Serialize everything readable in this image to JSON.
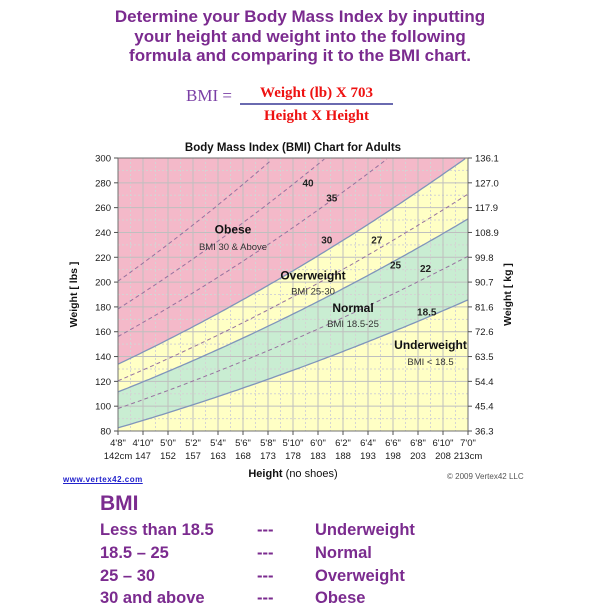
{
  "page": {
    "colors": {
      "heading_purple": "#7B2B8F",
      "formula_purple": "#7A3FA5",
      "formula_red": "#EE1111",
      "fraction_line": "#6A6AB0",
      "link_blue": "#2222CC"
    }
  },
  "header": {
    "lines": [
      "Determine your Body Mass Index by inputting",
      "your height and weight into the following",
      "formula and comparing it to the BMI chart."
    ]
  },
  "formula": {
    "lhs": "BMI =",
    "numerator": "Weight (lb) X 703",
    "denominator": "Height X Height"
  },
  "chart_data": {
    "type": "area",
    "title": "Body Mass Index (BMI) Chart for Adults",
    "bmi_formula": "weight_lb = BMI * height_in^2 / 703",
    "x_axis": {
      "label_bold": "Height",
      "label_rest": " (no shoes)",
      "range_in": [
        56,
        84
      ],
      "ticks_in": [
        56,
        58,
        60,
        62,
        64,
        66,
        68,
        70,
        72,
        74,
        76,
        78,
        80,
        82,
        84
      ],
      "ticks_ft": [
        "4'8\"",
        "4'10\"",
        "5'0\"",
        "5'2\"",
        "5'4\"",
        "5'6\"",
        "5'8\"",
        "5'10\"",
        "6'0\"",
        "6'2\"",
        "6'4\"",
        "6'6\"",
        "6'8\"",
        "6'10\"",
        "7'0\""
      ],
      "ticks_cm": [
        "142cm",
        "147",
        "152",
        "157",
        "163",
        "168",
        "173",
        "178",
        "183",
        "188",
        "193",
        "198",
        "203",
        "208",
        "213cm"
      ]
    },
    "y_left": {
      "label": "Weight [ lbs ]",
      "range_lbs": [
        80,
        300
      ],
      "ticks": [
        300,
        280,
        260,
        240,
        220,
        200,
        180,
        160,
        140,
        120,
        100,
        80
      ]
    },
    "y_right": {
      "label": "Weight [ kg ]",
      "ticks": [
        "136.1",
        "127.0",
        "117.9",
        "108.9",
        "99.8",
        "90.7",
        "81.6",
        "72.6",
        "63.5",
        "54.4",
        "45.4",
        "36.3"
      ]
    },
    "zones": [
      {
        "name": "Obese",
        "subtitle": "BMI 30 & Above",
        "bmi_range": [
          30,
          null
        ],
        "color": "#F4B9C9",
        "label": {
          "h_in": 65.2,
          "w_lbs": 239,
          "sub_w_lbs": 226
        }
      },
      {
        "name": "Overweight",
        "subtitle": "BMI 25-30",
        "bmi_range": [
          25,
          30
        ],
        "color": "#FFFFC5",
        "label": {
          "h_in": 71.6,
          "w_lbs": 202,
          "sub_w_lbs": 190
        }
      },
      {
        "name": "Normal",
        "subtitle": "BMI 18.5-25",
        "bmi_range": [
          18.5,
          25
        ],
        "color": "#C9EDD2",
        "label": {
          "h_in": 74.8,
          "w_lbs": 176,
          "sub_w_lbs": 164
        }
      },
      {
        "name": "Underweight",
        "subtitle": "BMI < 18.5",
        "bmi_range": [
          null,
          18.5
        ],
        "color": "#FFFFC5",
        "label": {
          "h_in": 81.0,
          "w_lbs": 146,
          "sub_w_lbs": 133
        }
      }
    ],
    "isolines": {
      "dashed_bmi": [
        45,
        40,
        35,
        27,
        22
      ],
      "solid_bmi": [
        30,
        25,
        18.5
      ]
    },
    "isoline_labels": [
      {
        "text": "40",
        "h_in": 71.2,
        "w_lbs": 277
      },
      {
        "text": "35",
        "h_in": 73.1,
        "w_lbs": 265
      },
      {
        "text": "30",
        "h_in": 72.7,
        "w_lbs": 231
      },
      {
        "text": "27",
        "h_in": 76.7,
        "w_lbs": 231
      },
      {
        "text": "25",
        "h_in": 78.2,
        "w_lbs": 211
      },
      {
        "text": "22",
        "h_in": 80.6,
        "w_lbs": 208
      },
      {
        "text": "18.5",
        "h_in": 80.7,
        "w_lbs": 173
      }
    ],
    "style": {
      "boundary_color": "#8095BB",
      "isoline_color": "#97729F",
      "grid_major": "#BFBFBF",
      "grid_minor": "#D4D4D4",
      "axis_color": "#707070",
      "tick_color": "#505050",
      "text_color": "#1A1A1A"
    }
  },
  "footer": {
    "link": "www.vertex42.com",
    "copyright": "© 2009 Vertex42 LLC"
  },
  "legend": {
    "title": "BMI",
    "rows": [
      {
        "range": "Less than 18.5",
        "dashes": "---",
        "label": "Underweight"
      },
      {
        "range": "18.5 – 25",
        "dashes": "---",
        "label": "Normal"
      },
      {
        "range": "25 – 30",
        "dashes": "---",
        "label": "Overweight"
      },
      {
        "range": "30 and above",
        "dashes": "---",
        "label": "Obese"
      }
    ]
  }
}
